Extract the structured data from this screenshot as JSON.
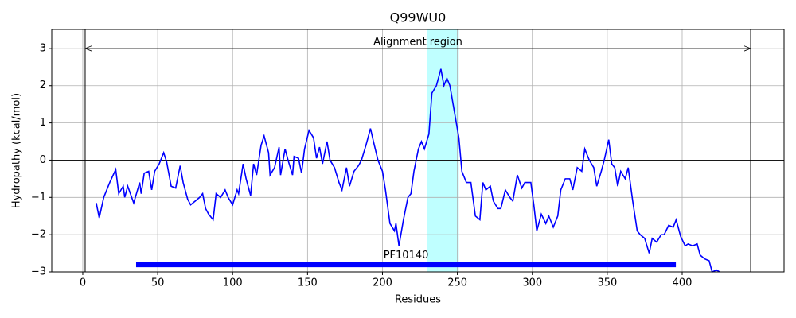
{
  "chart_data": {
    "type": "line",
    "title": "Q99WU0",
    "x_label": "Residues",
    "y_label": "Hydropathy (kcal/mol)",
    "xlim": [
      -20.7,
      468
    ],
    "ylim": [
      -3,
      3.51
    ],
    "xticks": [
      0,
      50,
      100,
      150,
      200,
      250,
      300,
      350,
      400
    ],
    "yticks": [
      {
        "value": -3,
        "label": "−3"
      },
      {
        "value": -2,
        "label": "−2"
      },
      {
        "value": -1,
        "label": "−1"
      },
      0,
      1,
      2,
      3
    ],
    "grid": true,
    "x": [
      9,
      11,
      14,
      18,
      22,
      24,
      27,
      28,
      30,
      34,
      38,
      39,
      41,
      44,
      46,
      48,
      51,
      54,
      56,
      59,
      62,
      65,
      67,
      70,
      72,
      75,
      78,
      80,
      82,
      84,
      87,
      89,
      92,
      95,
      97,
      100,
      103,
      104,
      107,
      109,
      112,
      114,
      116,
      119,
      121,
      124,
      125,
      128,
      131,
      132,
      135,
      137,
      140,
      141,
      144,
      146,
      148,
      151,
      154,
      156,
      158,
      160,
      163,
      165,
      168,
      171,
      173,
      176,
      178,
      181,
      184,
      186,
      189,
      192,
      194,
      197,
      200,
      202,
      205,
      208,
      209,
      211,
      214,
      217,
      219,
      221,
      224,
      226,
      228,
      231,
      233,
      236,
      239,
      241,
      243,
      245,
      248,
      251,
      253,
      256,
      259,
      262,
      265,
      267,
      269,
      272,
      274,
      277,
      279,
      282,
      285,
      287,
      290,
      293,
      295,
      299,
      301,
      303,
      306,
      309,
      311,
      314,
      317,
      319,
      322,
      325,
      327,
      330,
      333,
      335,
      338,
      341,
      343,
      346,
      348,
      351,
      353,
      355,
      357,
      359,
      362,
      364,
      367,
      370,
      372,
      375,
      378,
      380,
      383,
      386,
      388,
      391,
      394,
      396,
      399,
      402,
      404,
      407,
      410,
      412,
      415,
      418,
      420,
      423,
      425
    ],
    "series": [
      {
        "color": "#0000ff",
        "values": [
          -1.15,
          -1.55,
          -1.0,
          -0.6,
          -0.25,
          -0.9,
          -0.7,
          -1.0,
          -0.7,
          -1.15,
          -0.6,
          -0.9,
          -0.35,
          -0.3,
          -0.8,
          -0.3,
          -0.1,
          0.2,
          -0.05,
          -0.7,
          -0.75,
          -0.15,
          -0.6,
          -1.05,
          -1.2,
          -1.1,
          -1.0,
          -0.9,
          -1.3,
          -1.45,
          -1.6,
          -0.9,
          -1.0,
          -0.8,
          -1.0,
          -1.2,
          -0.8,
          -0.9,
          -0.1,
          -0.5,
          -0.95,
          -0.1,
          -0.4,
          0.4,
          0.65,
          0.2,
          -0.4,
          -0.2,
          0.35,
          -0.4,
          0.3,
          0.0,
          -0.4,
          0.1,
          0.05,
          -0.35,
          0.3,
          0.8,
          0.6,
          0.05,
          0.35,
          -0.1,
          0.5,
          0.0,
          -0.2,
          -0.6,
          -0.8,
          -0.2,
          -0.7,
          -0.3,
          -0.15,
          0.0,
          0.4,
          0.85,
          0.5,
          0.0,
          -0.3,
          -0.8,
          -1.7,
          -1.9,
          -1.7,
          -2.3,
          -1.6,
          -1.0,
          -0.9,
          -0.3,
          0.3,
          0.5,
          0.3,
          0.7,
          1.8,
          2.0,
          2.45,
          2.0,
          2.2,
          2.0,
          1.3,
          0.6,
          -0.3,
          -0.6,
          -0.6,
          -1.5,
          -1.6,
          -0.6,
          -0.8,
          -0.7,
          -1.1,
          -1.3,
          -1.3,
          -0.8,
          -1.0,
          -1.1,
          -0.4,
          -0.75,
          -0.6,
          -0.6,
          -1.2,
          -1.9,
          -1.45,
          -1.7,
          -1.5,
          -1.8,
          -1.5,
          -0.8,
          -0.5,
          -0.5,
          -0.8,
          -0.2,
          -0.3,
          0.3,
          0.0,
          -0.2,
          -0.7,
          -0.3,
          0.0,
          0.55,
          -0.1,
          -0.2,
          -0.7,
          -0.3,
          -0.5,
          -0.2,
          -1.1,
          -1.9,
          -2.0,
          -2.1,
          -2.5,
          -2.1,
          -2.2,
          -2.0,
          -2.0,
          -1.75,
          -1.8,
          -1.6,
          -2.05,
          -2.3,
          -2.25,
          -2.3,
          -2.25,
          -2.55,
          -2.65,
          -2.7,
          -3.0,
          -2.95,
          -3.0
        ]
      }
    ],
    "zero_line": 0,
    "highlight": {
      "start": 230,
      "end": 251,
      "color": "#00ffff"
    },
    "alignment_region": {
      "label": "Alignment region",
      "start": 1.6,
      "end": 445.7,
      "y": 3
    },
    "domain": {
      "label": "PF10140",
      "start": 35.6,
      "end": 395.8,
      "y": -2.8,
      "color": "#0000ff"
    }
  }
}
